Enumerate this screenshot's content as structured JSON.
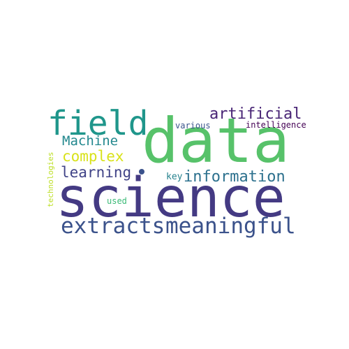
{
  "words": {
    "data": {
      "text": "data",
      "color": "#57c26a"
    },
    "science": {
      "text": "science",
      "color": "#443a83"
    },
    "field": {
      "text": "field",
      "color": "#1f968b"
    },
    "extracts": {
      "text": "extracts",
      "color": "#3b528b"
    },
    "meaningful": {
      "text": "meaningful",
      "color": "#3b528b"
    },
    "artificial": {
      "text": "artificial",
      "color": "#482475"
    },
    "machine": {
      "text": "Machine",
      "color": "#23888e"
    },
    "complex": {
      "text": "complex",
      "color": "#d8e219"
    },
    "learning": {
      "text": "learning",
      "color": "#404387"
    },
    "information": {
      "text": "information",
      "color": "#2d718e"
    },
    "various": {
      "text": "various",
      "color": "#3a548c"
    },
    "intelligence": {
      "text": "intelligence",
      "color": "#440154"
    },
    "key": {
      "text": "key",
      "color": "#26828e"
    },
    "used": {
      "text": "used",
      "color": "#3aba76"
    },
    "technologies": {
      "text": "technologies",
      "color": "#bddf26"
    }
  }
}
